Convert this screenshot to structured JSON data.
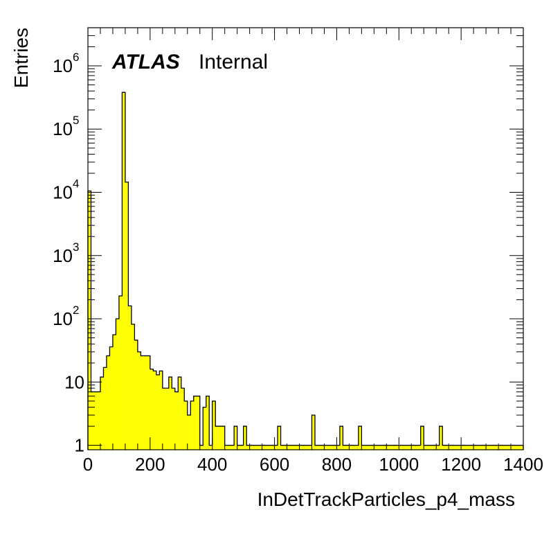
{
  "chart_data": {
    "type": "bar",
    "histtype": "step-filled",
    "title": "",
    "xlabel": "InDetTrackParticles_p4_mass",
    "ylabel": "Entries",
    "xlim": [
      0,
      1400
    ],
    "ylim": [
      0.85,
      4000000
    ],
    "yscale": "log",
    "grid": false,
    "legend": "none",
    "fill_color": "#ffff00",
    "line_color": "#000000",
    "bin_width": 10,
    "x": [
      5,
      15,
      25,
      35,
      45,
      55,
      65,
      75,
      85,
      95,
      105,
      115,
      125,
      135,
      145,
      155,
      165,
      175,
      185,
      195,
      205,
      215,
      225,
      235,
      245,
      255,
      265,
      275,
      285,
      295,
      305,
      315,
      325,
      335,
      345,
      355,
      365,
      375,
      385,
      395,
      405,
      415,
      425,
      435,
      445,
      455,
      465,
      475,
      485,
      495,
      505,
      515,
      525,
      535,
      545,
      555,
      565,
      575,
      585,
      595,
      605,
      615,
      625,
      635,
      645,
      655,
      665,
      675,
      685,
      695,
      705,
      715,
      725,
      735,
      745,
      755,
      765,
      775,
      785,
      795,
      805,
      815,
      825,
      835,
      845,
      855,
      865,
      875,
      885,
      895,
      905,
      915,
      925,
      935,
      945,
      955,
      965,
      975,
      985,
      995,
      1005,
      1015,
      1025,
      1035,
      1045,
      1055,
      1065,
      1075,
      1085,
      1095,
      1105,
      1115,
      1125,
      1135,
      1145,
      1155,
      1165,
      1175,
      1185,
      1195,
      1205,
      1215,
      1225,
      1235,
      1245,
      1255,
      1265,
      1275,
      1285,
      1295,
      1305,
      1315,
      1325,
      1335,
      1345,
      1355,
      1365,
      1375,
      1385,
      1395
    ],
    "values": [
      10500,
      7,
      7,
      7,
      12,
      17,
      26,
      36,
      56,
      100,
      230,
      380000,
      14500,
      160,
      82,
      46,
      30,
      26,
      26,
      26,
      16,
      15,
      13,
      15,
      8,
      8,
      12,
      8,
      7,
      12,
      8,
      5,
      3,
      5,
      6,
      6,
      1,
      4,
      6,
      1,
      5,
      2,
      2,
      2,
      1,
      1,
      1,
      2,
      1,
      1,
      2,
      1,
      1,
      1,
      1,
      1,
      1,
      1,
      1,
      1,
      1,
      2,
      1,
      1,
      1,
      1,
      1,
      1,
      1,
      1,
      1,
      1,
      3,
      1,
      1,
      1,
      1,
      1,
      1,
      1,
      1,
      2,
      1,
      1,
      1,
      1,
      1,
      2,
      1,
      1,
      1,
      1,
      1,
      1,
      1,
      1,
      1,
      1,
      1,
      1,
      1,
      1,
      1,
      1,
      1,
      1,
      1,
      2,
      1,
      1,
      1,
      1,
      1,
      2,
      1,
      1,
      1,
      1,
      1,
      1,
      1,
      1,
      1,
      1,
      1,
      1,
      1,
      1,
      1,
      1,
      1,
      1,
      1,
      1,
      1,
      1,
      1,
      1,
      1,
      1
    ],
    "x_ticks": [
      "0",
      "200",
      "400",
      "600",
      "800",
      "1000",
      "1200",
      "1400"
    ],
    "y_ticks": [
      {
        "base": "1",
        "exp": ""
      },
      {
        "base": "10",
        "exp": ""
      },
      {
        "base": "10",
        "exp": "2"
      },
      {
        "base": "10",
        "exp": "3"
      },
      {
        "base": "10",
        "exp": "4"
      },
      {
        "base": "10",
        "exp": "5"
      },
      {
        "base": "10",
        "exp": "6"
      }
    ],
    "annotations": {
      "atlas": "ATLAS",
      "status": "Internal"
    }
  }
}
